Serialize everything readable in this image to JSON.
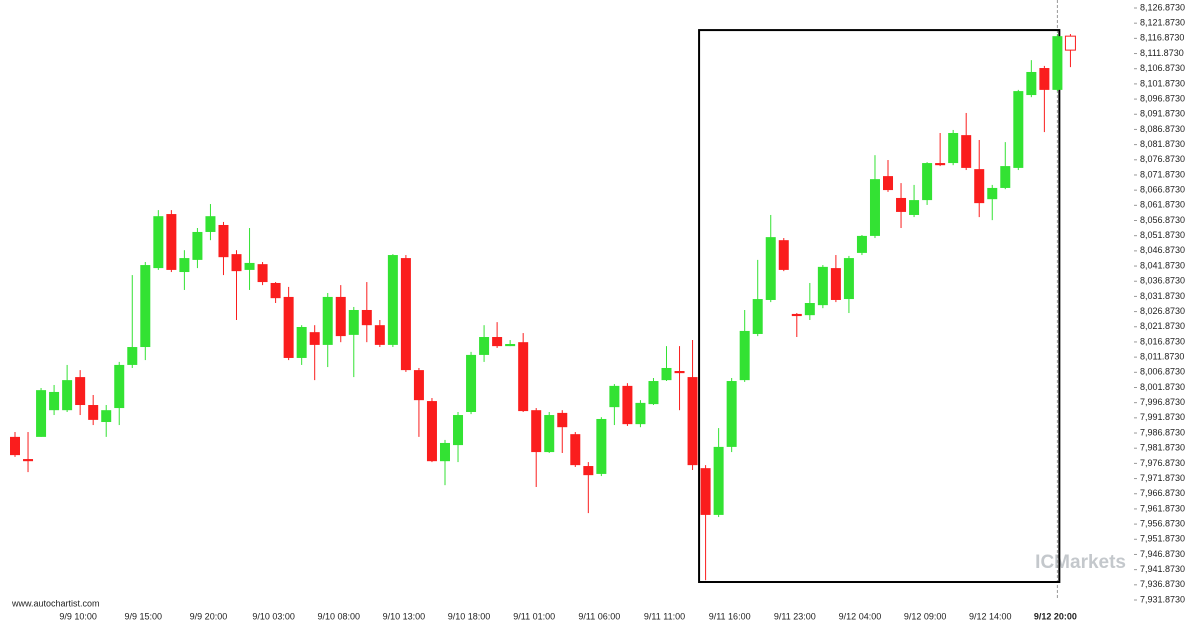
{
  "chart_data": {
    "type": "candlestick",
    "source": "www.autochartist.com",
    "watermark": "ICMarkets",
    "up_color": "#33e233",
    "down_color": "#fa1d1d",
    "categories": [
      null,
      null,
      null,
      null,
      null,
      "9/9 10:00",
      null,
      null,
      null,
      null,
      "9/9 15:00",
      null,
      null,
      null,
      null,
      "9/9 20:00",
      null,
      null,
      null,
      null,
      "9/10 03:00",
      null,
      null,
      null,
      null,
      "9/10 08:00",
      null,
      null,
      null,
      null,
      "9/10 13:00",
      null,
      null,
      null,
      null,
      "9/10 18:00",
      null,
      null,
      null,
      null,
      "9/11 01:00",
      null,
      null,
      null,
      null,
      "9/11 06:00",
      null,
      null,
      null,
      null,
      "9/11 11:00",
      null,
      null,
      null,
      null,
      "9/11 16:00",
      null,
      null,
      null,
      null,
      "9/11 23:00",
      null,
      null,
      null,
      null,
      "9/12 04:00",
      null,
      null,
      null,
      null,
      "9/12 09:00",
      null,
      null,
      null,
      null,
      "9/12 14:00",
      null,
      null,
      null,
      null,
      "9/12 20:00",
      null
    ],
    "open": [
      7985.6,
      7978.3,
      7985.6,
      7994.4,
      7994.4,
      8005.3,
      7996.1,
      7990.5,
      7995.1,
      8009.3,
      8015.2,
      8041.2,
      8059.0,
      8039.9,
      8043.9,
      8053.1,
      8055.4,
      8045.8,
      8040.6,
      8042.5,
      8036.3,
      8031.7,
      8011.6,
      8020.1,
      8015.9,
      8031.7,
      8019.2,
      8027.4,
      8022.4,
      8015.9,
      8044.5,
      8007.6,
      7997.4,
      7977.6,
      7982.9,
      7993.8,
      8012.6,
      8018.5,
      8015.5,
      8016.8,
      7994.4,
      7980.6,
      7993.5,
      7986.5,
      7976.0,
      7973.4,
      7995.4,
      8002.4,
      7989.8,
      7996.4,
      8004.3,
      8007.3,
      8005.3,
      7975.3,
      7959.9,
      7982.3,
      8004.3,
      8019.5,
      8030.7,
      8050.4,
      8026.1,
      8025.7,
      8029.0,
      8041.2,
      8031.0,
      8046.2,
      8051.8,
      8071.5,
      8064.3,
      8058.7,
      8063.6,
      8075.8,
      8075.8,
      8085.0,
      8073.8,
      8063.9,
      8067.6,
      8074.2,
      8098.2,
      8107.1,
      8099.9,
      8117.6
    ],
    "high": [
      7987.2,
      7987.2,
      8001.7,
      8002.7,
      8009.3,
      8007.6,
      7999.4,
      7996.1,
      8010.3,
      8038.9,
      8043.2,
      8060.3,
      8060.3,
      8047.1,
      8054.4,
      8062.3,
      8056.4,
      8047.1,
      8054.4,
      8043.2,
      8036.6,
      8035.0,
      8022.4,
      8022.4,
      8033.0,
      8035.6,
      8028.4,
      8036.6,
      8024.1,
      8045.8,
      8045.5,
      8008.3,
      7998.4,
      7984.6,
      7993.8,
      8013.6,
      8022.4,
      8023.4,
      8017.5,
      8019.8,
      7995.1,
      7993.8,
      7994.4,
      7987.2,
      7977.3,
      7992.1,
      8003.0,
      8003.3,
      7997.7,
      8005.0,
      8015.5,
      8015.5,
      8017.5,
      7976.3,
      7988.5,
      8005.0,
      8027.4,
      8043.9,
      8058.7,
      8051.1,
      8026.4,
      8036.3,
      8042.2,
      8045.5,
      8045.2,
      8052.1,
      8078.4,
      8076.8,
      8069.2,
      8068.6,
      8076.1,
      8085.7,
      8086.7,
      8092.3,
      8083.4,
      8068.6,
      8082.7,
      8099.9,
      8109.7,
      8107.8,
      8118.3,
      8118.3
    ],
    "low": [
      7979.0,
      7974.0,
      7985.6,
      7992.8,
      7993.8,
      7992.8,
      7989.5,
      7985.6,
      7989.5,
      8008.3,
      8010.9,
      8040.6,
      8039.9,
      8034.0,
      8041.2,
      8050.4,
      8038.9,
      8024.1,
      8034.0,
      8035.6,
      8029.7,
      8010.9,
      8009.3,
      8004.3,
      8008.6,
      8016.8,
      8005.3,
      8016.8,
      8015.2,
      8015.2,
      8007.0,
      7985.6,
      7977.3,
      7969.7,
      7977.3,
      7993.1,
      8010.3,
      8014.9,
      8015.5,
      7993.8,
      7969.1,
      7980.3,
      7980.3,
      7975.7,
      7960.5,
      7972.7,
      7989.5,
      7989.2,
      7988.8,
      7996.1,
      8004.0,
      7994.4,
      7974.7,
      7938.4,
      7959.2,
      7980.6,
      8003.7,
      8018.8,
      8030.0,
      8040.2,
      8018.5,
      8024.1,
      8028.0,
      8030.0,
      8026.4,
      8045.5,
      8051.1,
      8066.3,
      8054.4,
      8058.0,
      8062.0,
      8074.8,
      8075.1,
      8073.5,
      8058.0,
      8057.0,
      8067.2,
      8073.5,
      8097.5,
      8086.0,
      8099.5,
      8107.4
    ],
    "close": [
      7979.6,
      7977.6,
      8001.0,
      8000.4,
      8004.3,
      7996.1,
      7991.2,
      7994.4,
      8009.3,
      8015.2,
      8042.2,
      8058.3,
      8040.6,
      8044.5,
      8053.1,
      8058.3,
      8044.8,
      8040.2,
      8042.9,
      8036.6,
      8031.3,
      8011.6,
      8021.8,
      8015.9,
      8031.7,
      8018.8,
      8027.4,
      8022.4,
      8015.9,
      8045.5,
      8007.6,
      7997.7,
      7977.6,
      7983.6,
      7992.8,
      8012.6,
      8018.5,
      8015.5,
      8016.2,
      7994.1,
      7980.6,
      7992.8,
      7988.8,
      7976.3,
      7973.0,
      7991.5,
      8002.4,
      7989.8,
      7996.8,
      8004.0,
      8008.3,
      8006.6,
      7976.3,
      7959.9,
      7982.3,
      8004.0,
      8020.5,
      8031.0,
      8051.4,
      8040.6,
      8025.4,
      8029.7,
      8041.6,
      8030.7,
      8044.5,
      8051.8,
      8070.5,
      8066.9,
      8059.7,
      8063.6,
      8075.8,
      8075.1,
      8085.7,
      8074.2,
      8062.6,
      8067.6,
      8074.8,
      8099.5,
      8105.8,
      8099.9,
      8117.6,
      8113.0
    ],
    "box": {
      "from": 53,
      "to": 80,
      "high": 8119.6,
      "low": 7937.8
    },
    "ylim": [
      7931.873,
      8126.873
    ],
    "yticks": [
      {
        "value": 7931.873,
        "label": "7,931.8730"
      },
      {
        "value": 7936.873,
        "label": "7,936.8730"
      },
      {
        "value": 7941.873,
        "label": "7,941.8730"
      },
      {
        "value": 7946.873,
        "label": "7,946.8730"
      },
      {
        "value": 7951.873,
        "label": "7,951.8730"
      },
      {
        "value": 7956.873,
        "label": "7,956.8730"
      },
      {
        "value": 7961.873,
        "label": "7,961.8730"
      },
      {
        "value": 7966.873,
        "label": "7,966.8730"
      },
      {
        "value": 7971.873,
        "label": "7,971.8730"
      },
      {
        "value": 7976.873,
        "label": "7,976.8730"
      },
      {
        "value": 7981.873,
        "label": "7,981.8730"
      },
      {
        "value": 7986.873,
        "label": "7,986.8730"
      },
      {
        "value": 7991.873,
        "label": "7,991.8730"
      },
      {
        "value": 7996.873,
        "label": "7,996.8730"
      },
      {
        "value": 8001.873,
        "label": "8,001.8730"
      },
      {
        "value": 8006.873,
        "label": "8,006.8730"
      },
      {
        "value": 8011.873,
        "label": "8,011.8730"
      },
      {
        "value": 8016.873,
        "label": "8,016.8730"
      },
      {
        "value": 8021.873,
        "label": "8,021.8730"
      },
      {
        "value": 8026.873,
        "label": "8,026.8730"
      },
      {
        "value": 8031.873,
        "label": "8,031.8730"
      },
      {
        "value": 8036.873,
        "label": "8,036.8730"
      },
      {
        "value": 8041.873,
        "label": "8,041.8730"
      },
      {
        "value": 8046.873,
        "label": "8,046.8730"
      },
      {
        "value": 8051.873,
        "label": "8,051.8730"
      },
      {
        "value": 8056.873,
        "label": "8,056.8730"
      },
      {
        "value": 8061.873,
        "label": "8,061.8730"
      },
      {
        "value": 8066.873,
        "label": "8,066.8730"
      },
      {
        "value": 8071.873,
        "label": "8,071.8730"
      },
      {
        "value": 8076.873,
        "label": "8,076.8730"
      },
      {
        "value": 8081.873,
        "label": "8,081.8730"
      },
      {
        "value": 8086.873,
        "label": "8,086.8730"
      },
      {
        "value": 8091.873,
        "label": "8,091.8730"
      },
      {
        "value": 8096.873,
        "label": "8,096.8730"
      },
      {
        "value": 8101.873,
        "label": "8,101.8730"
      },
      {
        "value": 8106.873,
        "label": "8,106.8730"
      },
      {
        "value": 8111.873,
        "label": "8,111.8730"
      },
      {
        "value": 8116.873,
        "label": "8,116.8730"
      },
      {
        "value": 8121.873,
        "label": "8,121.8730"
      },
      {
        "value": 8126.873,
        "label": "8,126.8730"
      }
    ],
    "grid": false
  }
}
